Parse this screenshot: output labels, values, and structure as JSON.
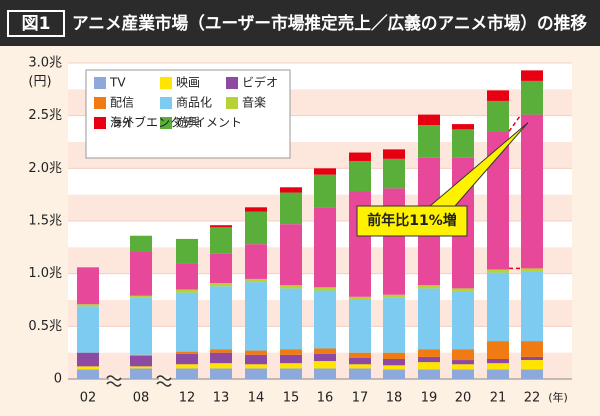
{
  "chart_data": {
    "type": "stacked-bar",
    "figure_label": "図1",
    "title": "アニメ産業市場（ユーザー市場推定売上／広義のアニメ市場）の推移",
    "y_unit": "(円)",
    "x_unit": "(年)",
    "annotation": "前年比11%増",
    "categories": [
      "02",
      "08",
      "12",
      "13",
      "14",
      "15",
      "16",
      "17",
      "18",
      "19",
      "20",
      "21",
      "22"
    ],
    "ylim": [
      0,
      3.0
    ],
    "yticks": [
      0,
      {
        "value": 0.5,
        "label": "0.5兆"
      },
      {
        "value": 1.0,
        "label": "1.0兆"
      },
      {
        "value": 1.5,
        "label": "1.5兆"
      },
      {
        "value": 2.0,
        "label": "2.0兆"
      },
      {
        "value": 2.5,
        "label": "2.5兆"
      },
      {
        "value": 3.0,
        "label": "3.0兆"
      }
    ],
    "series": [
      {
        "name": "TV",
        "color": "#8da9db",
        "values": [
          0.09,
          0.1,
          0.1,
          0.1,
          0.1,
          0.1,
          0.1,
          0.1,
          0.09,
          0.09,
          0.09,
          0.09,
          0.09
        ]
      },
      {
        "name": "映画",
        "color": "#ffe400",
        "values": [
          0.03,
          0.02,
          0.04,
          0.05,
          0.04,
          0.05,
          0.07,
          0.04,
          0.04,
          0.07,
          0.05,
          0.06,
          0.09
        ]
      },
      {
        "name": "ビデオ",
        "color": "#8e4aa1",
        "values": [
          0.13,
          0.1,
          0.1,
          0.1,
          0.09,
          0.08,
          0.07,
          0.06,
          0.06,
          0.05,
          0.04,
          0.04,
          0.03
        ]
      },
      {
        "name": "配信",
        "color": "#f07b12",
        "values": [
          0,
          0.01,
          0.02,
          0.03,
          0.04,
          0.05,
          0.05,
          0.05,
          0.06,
          0.07,
          0.1,
          0.17,
          0.15
        ]
      },
      {
        "name": "商品化",
        "color": "#7dcbf0",
        "values": [
          0.44,
          0.54,
          0.56,
          0.6,
          0.65,
          0.58,
          0.55,
          0.5,
          0.52,
          0.58,
          0.55,
          0.65,
          0.66
        ]
      },
      {
        "name": "音楽",
        "color": "#b5d334",
        "values": [
          0.02,
          0.02,
          0.03,
          0.03,
          0.03,
          0.03,
          0.03,
          0.03,
          0.03,
          0.03,
          0.03,
          0.03,
          0.03
        ]
      },
      {
        "name": "海外",
        "color": "#e8489a",
        "values": [
          0.35,
          0.42,
          0.25,
          0.28,
          0.33,
          0.58,
          0.76,
          1.0,
          1.01,
          1.21,
          1.24,
          1.31,
          1.46
        ]
      },
      {
        "name": "遊興",
        "color": "#5aae3a",
        "values": [
          0,
          0.15,
          0.23,
          0.25,
          0.31,
          0.3,
          0.31,
          0.29,
          0.28,
          0.31,
          0.27,
          0.29,
          0.32
        ]
      },
      {
        "name": "ライブエンタテイメント",
        "color": "#e60012",
        "values": [
          0,
          0,
          0,
          0.02,
          0.04,
          0.05,
          0.06,
          0.08,
          0.09,
          0.1,
          0.05,
          0.1,
          0.1
        ]
      }
    ]
  }
}
